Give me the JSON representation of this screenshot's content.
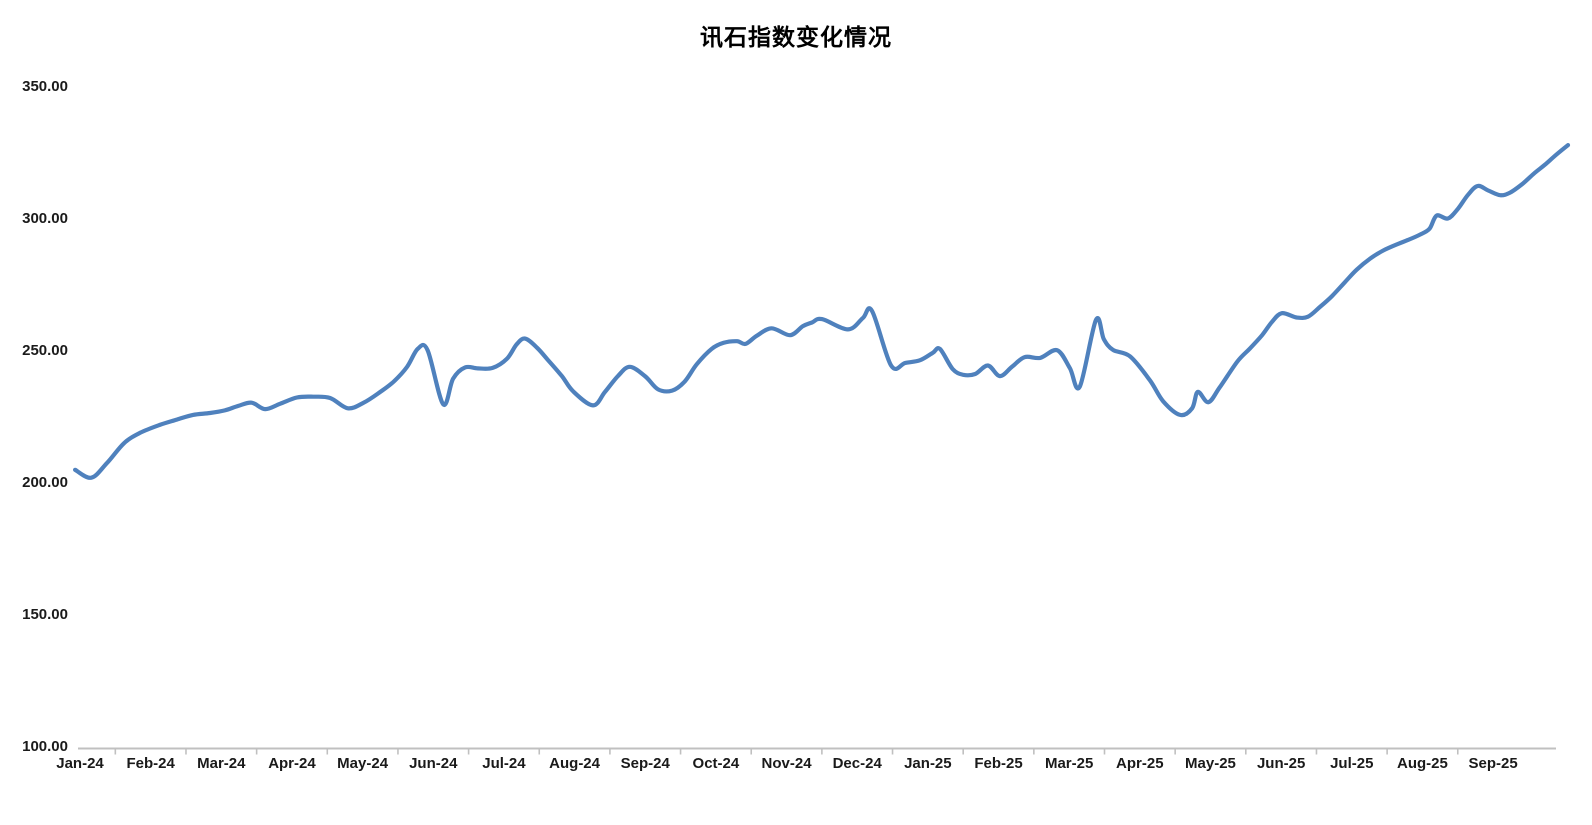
{
  "title": "讯石指数变化情况",
  "chart_data": {
    "type": "line",
    "title": "讯石指数变化情况",
    "series_name": "讯石指数",
    "xlabel": "",
    "ylabel": "",
    "x_note": "points given as [months_since_Jan24_axis_position, index_value]; readings are approximately weekly",
    "x_tick_labels": [
      "Jan-24",
      "Feb-24",
      "Mar-24",
      "Apr-24",
      "May-24",
      "Jun-24",
      "Jul-24",
      "Aug-24",
      "Sep-24",
      "Oct-24",
      "Nov-24",
      "Dec-24",
      "Jan-25",
      "Feb-25",
      "Mar-25",
      "Apr-25",
      "May-25",
      "Jun-25",
      "Jul-25",
      "Aug-25",
      "Sep-25"
    ],
    "y_tick_labels": [
      "350.00",
      "300.00",
      "250.00",
      "200.00",
      "150.00",
      "100.00"
    ],
    "ylim": [
      100,
      350
    ],
    "grid": false,
    "legend": false,
    "line_color": "#4F81BD",
    "axis_color": "#C0C0C0",
    "text_color": "#1a1a1a",
    "points": [
      [
        -0.07,
        205.0
      ],
      [
        0.16,
        202.0
      ],
      [
        0.38,
        207.5
      ],
      [
        0.62,
        215.0
      ],
      [
        0.85,
        219.0
      ],
      [
        1.13,
        222.0
      ],
      [
        1.37,
        224.0
      ],
      [
        1.6,
        225.8
      ],
      [
        1.84,
        226.5
      ],
      [
        2.05,
        227.5
      ],
      [
        2.24,
        229.2
      ],
      [
        2.43,
        230.4
      ],
      [
        2.62,
        228.0
      ],
      [
        2.83,
        230.0
      ],
      [
        3.07,
        232.4
      ],
      [
        3.3,
        232.7
      ],
      [
        3.54,
        232.2
      ],
      [
        3.79,
        228.3
      ],
      [
        4.02,
        230.5
      ],
      [
        4.25,
        234.5
      ],
      [
        4.44,
        238.4
      ],
      [
        4.63,
        244.0
      ],
      [
        4.78,
        250.8
      ],
      [
        4.92,
        250.3
      ],
      [
        5.14,
        229.8
      ],
      [
        5.28,
        239.5
      ],
      [
        5.45,
        243.8
      ],
      [
        5.63,
        243.4
      ],
      [
        5.84,
        243.6
      ],
      [
        6.04,
        247.0
      ],
      [
        6.18,
        252.5
      ],
      [
        6.3,
        254.7
      ],
      [
        6.47,
        251.2
      ],
      [
        6.62,
        246.7
      ],
      [
        6.82,
        240.5
      ],
      [
        6.98,
        234.7
      ],
      [
        7.26,
        229.4
      ],
      [
        7.43,
        234.5
      ],
      [
        7.61,
        240.4
      ],
      [
        7.78,
        244.0
      ],
      [
        8.0,
        240.4
      ],
      [
        8.18,
        235.5
      ],
      [
        8.38,
        235.0
      ],
      [
        8.56,
        238.5
      ],
      [
        8.73,
        245.0
      ],
      [
        8.94,
        250.8
      ],
      [
        9.11,
        253.1
      ],
      [
        9.3,
        253.7
      ],
      [
        9.42,
        252.7
      ],
      [
        9.58,
        255.8
      ],
      [
        9.79,
        258.6
      ],
      [
        10.05,
        256.0
      ],
      [
        10.23,
        259.4
      ],
      [
        10.36,
        260.8
      ],
      [
        10.5,
        262.1
      ],
      [
        10.87,
        258.2
      ],
      [
        11.08,
        262.5
      ],
      [
        11.21,
        265.2
      ],
      [
        11.48,
        244.5
      ],
      [
        11.68,
        245.5
      ],
      [
        11.89,
        246.5
      ],
      [
        12.07,
        249.3
      ],
      [
        12.17,
        250.8
      ],
      [
        12.35,
        243.2
      ],
      [
        12.5,
        241.0
      ],
      [
        12.67,
        241.3
      ],
      [
        12.85,
        244.5
      ],
      [
        13.02,
        240.5
      ],
      [
        13.19,
        244.0
      ],
      [
        13.37,
        247.7
      ],
      [
        13.59,
        247.4
      ],
      [
        13.83,
        250.3
      ],
      [
        14.01,
        243.5
      ],
      [
        14.15,
        236.5
      ],
      [
        14.38,
        261.8
      ],
      [
        14.49,
        254.5
      ],
      [
        14.62,
        250.4
      ],
      [
        14.86,
        248.0
      ],
      [
        15.14,
        239.0
      ],
      [
        15.33,
        231.0
      ],
      [
        15.57,
        225.8
      ],
      [
        15.74,
        228.3
      ],
      [
        15.82,
        234.5
      ],
      [
        15.97,
        230.6
      ],
      [
        16.13,
        236.2
      ],
      [
        16.38,
        246.0
      ],
      [
        16.56,
        251.0
      ],
      [
        16.73,
        256.0
      ],
      [
        16.87,
        261.0
      ],
      [
        17.01,
        264.3
      ],
      [
        17.22,
        262.7
      ],
      [
        17.38,
        263.0
      ],
      [
        17.55,
        266.7
      ],
      [
        17.72,
        270.8
      ],
      [
        17.9,
        276.0
      ],
      [
        18.07,
        280.8
      ],
      [
        18.26,
        285.0
      ],
      [
        18.44,
        288.0
      ],
      [
        18.65,
        290.5
      ],
      [
        18.79,
        292.0
      ],
      [
        18.96,
        294.0
      ],
      [
        19.1,
        296.3
      ],
      [
        19.2,
        301.3
      ],
      [
        19.36,
        300.2
      ],
      [
        19.5,
        303.8
      ],
      [
        19.64,
        309.0
      ],
      [
        19.78,
        312.5
      ],
      [
        19.93,
        310.8
      ],
      [
        20.1,
        309.0
      ],
      [
        20.24,
        310.0
      ],
      [
        20.41,
        313.2
      ],
      [
        20.59,
        317.5
      ],
      [
        20.73,
        320.5
      ],
      [
        20.9,
        324.5
      ],
      [
        21.06,
        328.0
      ]
    ]
  }
}
